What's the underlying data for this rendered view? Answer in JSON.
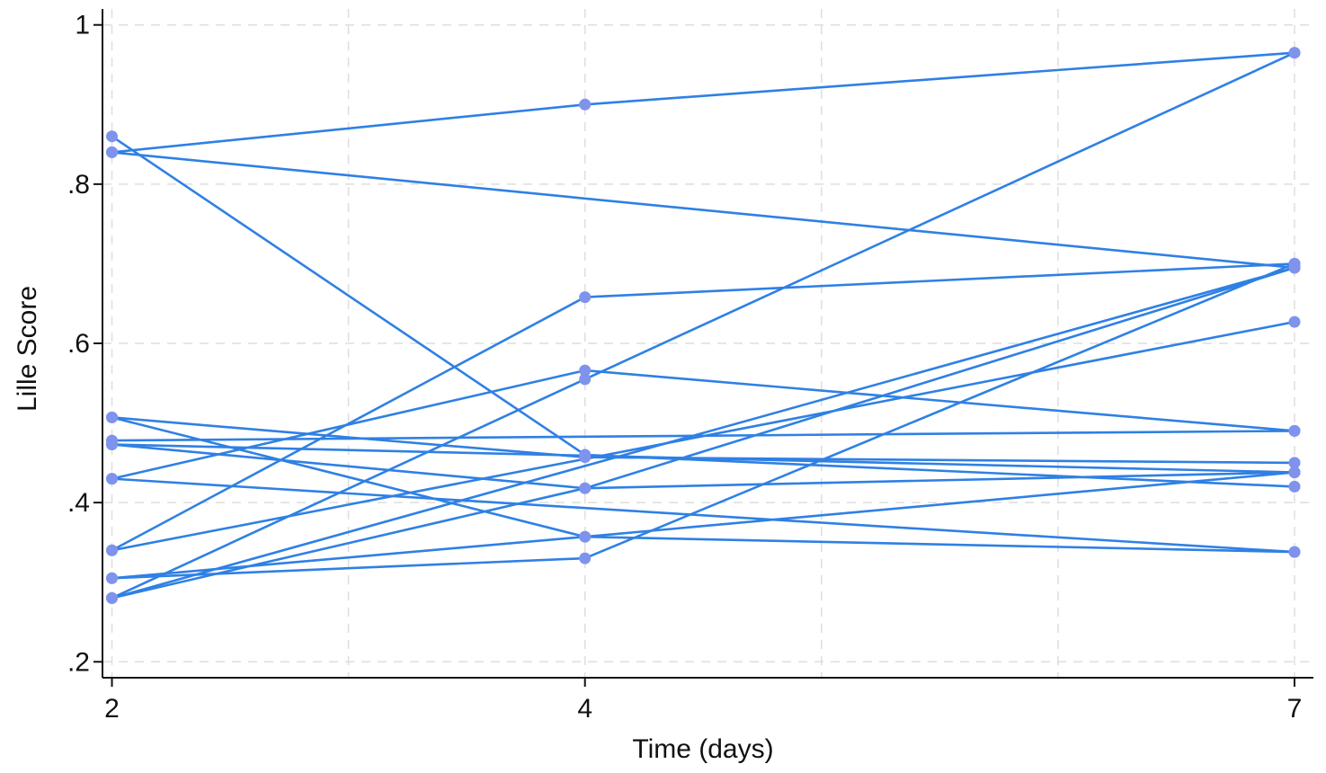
{
  "chart_data": {
    "type": "line",
    "title": "",
    "xlabel": "Time (days)",
    "ylabel": "Lille Score",
    "x": [
      2,
      4,
      7
    ],
    "x_tick_labels": [
      "2",
      "4",
      "7"
    ],
    "xlim": [
      1.96,
      7.08
    ],
    "y_ticks": [
      0.2,
      0.4,
      0.6,
      0.8,
      1.0
    ],
    "y_tick_labels": [
      ".2",
      ".4",
      ".6",
      ".8",
      "1"
    ],
    "ylim": [
      0.18,
      1.02
    ],
    "grid": true,
    "legend": "none",
    "line_color": "#2f80e4",
    "marker_color": "#7f93ec",
    "series": [
      {
        "values": [
          0.84,
          0.9,
          0.965
        ]
      },
      {
        "values": [
          0.84,
          null,
          0.695
        ]
      },
      {
        "values": [
          0.86,
          0.46,
          0.42
        ]
      },
      {
        "values": [
          0.34,
          0.658,
          0.7
        ]
      },
      {
        "values": [
          0.28,
          0.555,
          0.965
        ]
      },
      {
        "values": [
          0.43,
          0.566,
          0.49
        ]
      },
      {
        "values": [
          0.507,
          0.457,
          0.45
        ]
      },
      {
        "values": [
          0.507,
          0.357,
          0.338
        ]
      },
      {
        "values": [
          0.478,
          null,
          0.49
        ]
      },
      {
        "values": [
          0.473,
          0.418,
          0.438
        ]
      },
      {
        "values": [
          0.473,
          null,
          0.438
        ]
      },
      {
        "values": [
          0.43,
          null,
          0.338
        ]
      },
      {
        "values": [
          0.34,
          null,
          0.627
        ]
      },
      {
        "values": [
          0.28,
          0.418,
          0.695
        ]
      },
      {
        "values": [
          0.305,
          0.33,
          0.7
        ]
      },
      {
        "values": [
          0.305,
          0.357,
          0.438
        ]
      },
      {
        "values": [
          0.28,
          null,
          0.695
        ]
      }
    ]
  }
}
